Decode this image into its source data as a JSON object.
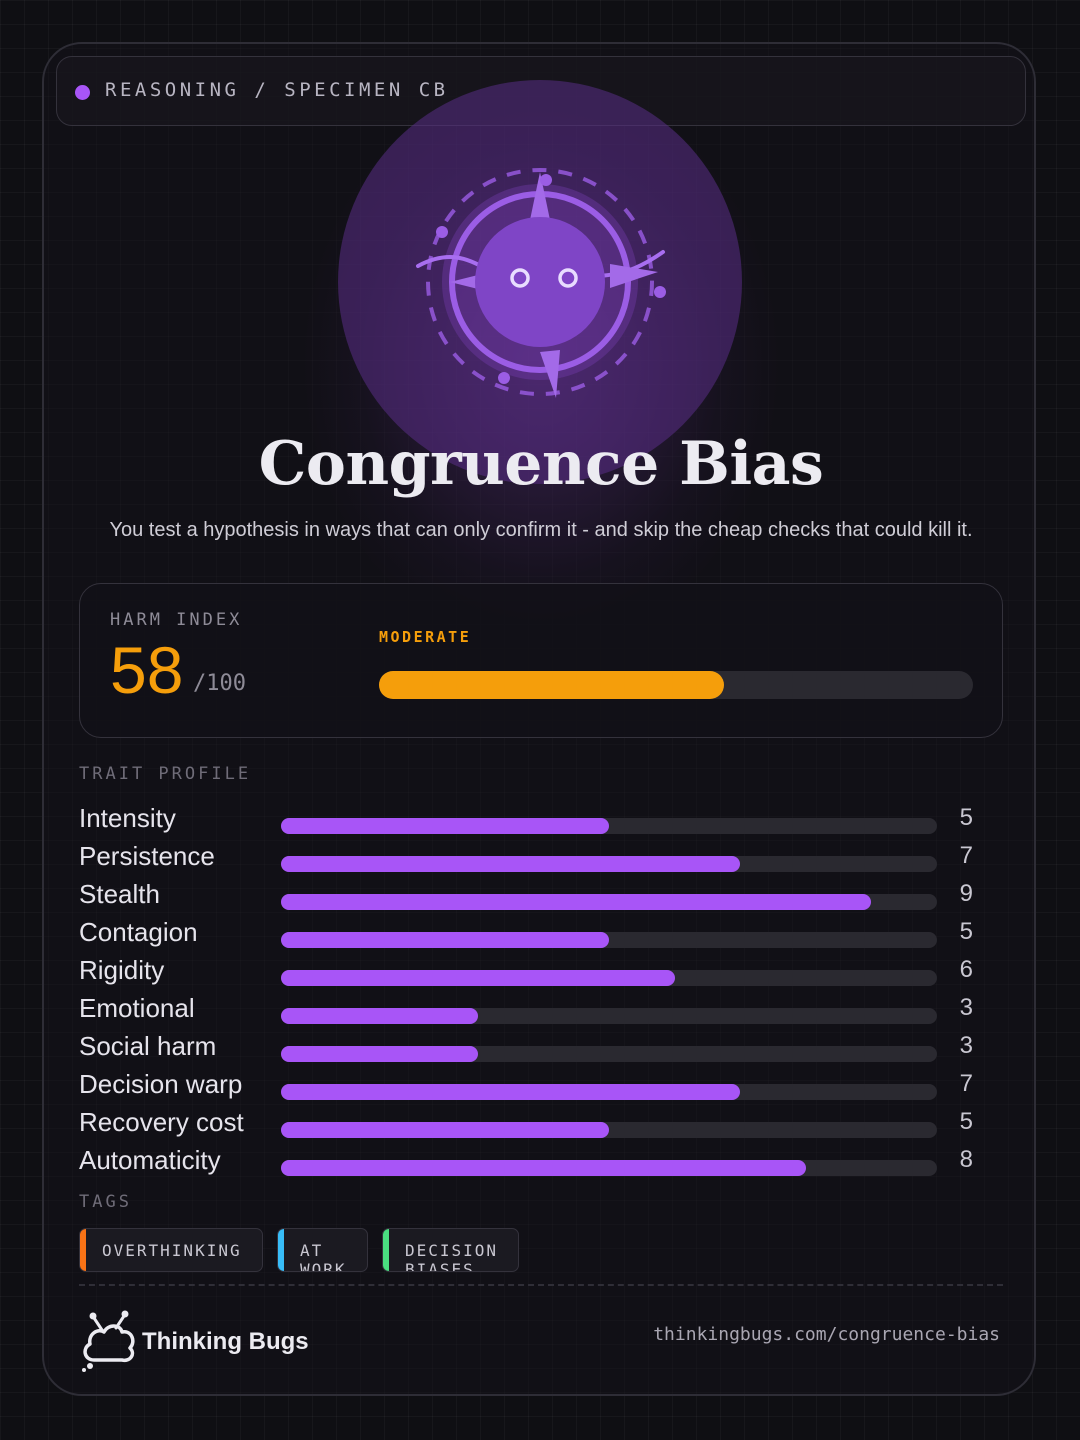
{
  "header": {
    "crumb": "REASONING / SPECIMEN CB"
  },
  "title": "Congruence Bias",
  "subtitle": "You test a hypothesis in ways that can only confirm it - and skip the cheap checks that could kill it.",
  "harm": {
    "label": "HARM INDEX",
    "score": "58",
    "max": "/100",
    "level": "MODERATE",
    "fraction": 0.58
  },
  "traits_label": "TRAIT PROFILE",
  "traits": [
    {
      "name": "Intensity",
      "value": "5",
      "score": 5
    },
    {
      "name": "Persistence",
      "value": "7",
      "score": 7
    },
    {
      "name": "Stealth",
      "value": "9",
      "score": 9
    },
    {
      "name": "Contagion",
      "value": "5",
      "score": 5
    },
    {
      "name": "Rigidity",
      "value": "6",
      "score": 6
    },
    {
      "name": "Emotional",
      "value": "3",
      "score": 3
    },
    {
      "name": "Social harm",
      "value": "3",
      "score": 3
    },
    {
      "name": "Decision warp",
      "value": "7",
      "score": 7
    },
    {
      "name": "Recovery cost",
      "value": "5",
      "score": 5
    },
    {
      "name": "Automaticity",
      "value": "8",
      "score": 8
    }
  ],
  "trait_max": 10,
  "tags_label": "TAGS",
  "tags": [
    {
      "label": "OVERTHINKING",
      "color": "#f97316"
    },
    {
      "label": "AT WORK",
      "color": "#38bdf8"
    },
    {
      "label": "DECISION BIASES",
      "color": "#4ade80"
    }
  ],
  "footer": {
    "brand": "Thinking Bugs",
    "url": "thinkingbugs.com/congruence-bias"
  },
  "colors": {
    "accent": "#a855f7",
    "harm": "#f59e0b"
  },
  "icons": {
    "mascot": "compass-bug-icon",
    "brand": "bug-cloud-icon"
  }
}
